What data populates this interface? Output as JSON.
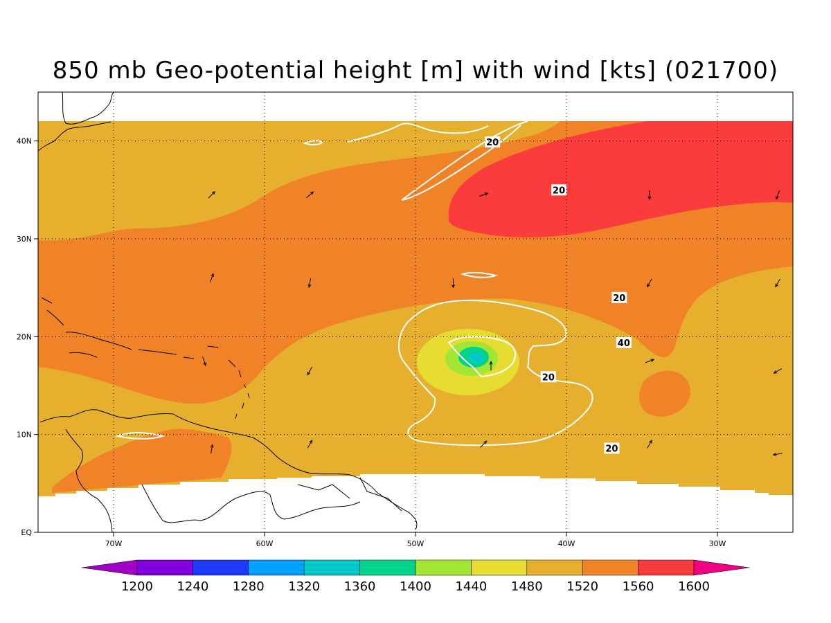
{
  "title": "850 mb Geo-potential height [m] with wind [kts] (021700)",
  "map": {
    "lon_range": [
      -75,
      -25
    ],
    "lat_range": [
      0,
      45
    ],
    "lon_ticks": [
      {
        "value": -70,
        "label": "70W"
      },
      {
        "value": -60,
        "label": "60W"
      },
      {
        "value": -50,
        "label": "50W"
      },
      {
        "value": -40,
        "label": "40W"
      },
      {
        "value": -30,
        "label": "30W"
      }
    ],
    "lat_ticks": [
      {
        "value": 0,
        "label": "EQ"
      },
      {
        "value": 10,
        "label": "10N"
      },
      {
        "value": 20,
        "label": "20N"
      },
      {
        "value": 30,
        "label": "30N"
      },
      {
        "value": 40,
        "label": "40N"
      }
    ],
    "grid": true
  },
  "colorbar": {
    "levels": [
      "1200",
      "1240",
      "1280",
      "1320",
      "1360",
      "1400",
      "1440",
      "1480",
      "1520",
      "1560",
      "1600"
    ],
    "colors": [
      "#a000c8",
      "#8200dc",
      "#1e3cff",
      "#00a0ff",
      "#00c8c8",
      "#00d28c",
      "#a0e632",
      "#e6dc32",
      "#e6af2d",
      "#f08228",
      "#fa3c3c",
      "#f00082"
    ]
  },
  "contour_labels": [
    {
      "text": "20",
      "lon": -44.9,
      "lat": 39.9
    },
    {
      "text": "20",
      "lon": -40.5,
      "lat": 35.0
    },
    {
      "text": "20",
      "lon": -36.5,
      "lat": 24.0
    },
    {
      "text": "40",
      "lon": -36.2,
      "lat": 19.4
    },
    {
      "text": "20",
      "lon": -41.2,
      "lat": 15.9
    },
    {
      "text": "20",
      "lon": -37.0,
      "lat": 8.6
    }
  ],
  "wind_vectors": [
    {
      "lon": -63.5,
      "lat": 34.5,
      "dir": 45
    },
    {
      "lon": -57.0,
      "lat": 34.5,
      "dir": 40
    },
    {
      "lon": -45.5,
      "lat": 34.5,
      "dir": 20
    },
    {
      "lon": -34.5,
      "lat": 34.5,
      "dir": 270
    },
    {
      "lon": -26.0,
      "lat": 34.5,
      "dir": 250
    },
    {
      "lon": -63.5,
      "lat": 26.0,
      "dir": 70
    },
    {
      "lon": -57.0,
      "lat": 25.5,
      "dir": 260
    },
    {
      "lon": -47.5,
      "lat": 25.5,
      "dir": 270
    },
    {
      "lon": -34.5,
      "lat": 25.5,
      "dir": 240
    },
    {
      "lon": -26.0,
      "lat": 25.5,
      "dir": 240
    },
    {
      "lon": -64.0,
      "lat": 17.5,
      "dir": 290
    },
    {
      "lon": -57.0,
      "lat": 16.5,
      "dir": 240
    },
    {
      "lon": -45.0,
      "lat": 17.0,
      "dir": 90
    },
    {
      "lon": -34.5,
      "lat": 17.5,
      "dir": 20
    },
    {
      "lon": -26.0,
      "lat": 16.5,
      "dir": 210
    },
    {
      "lon": -63.5,
      "lat": 8.5,
      "dir": 80
    },
    {
      "lon": -57.0,
      "lat": 9.0,
      "dir": 60
    },
    {
      "lon": -45.5,
      "lat": 9.0,
      "dir": 45
    },
    {
      "lon": -34.5,
      "lat": 9.0,
      "dir": 60
    },
    {
      "lon": -26.0,
      "lat": 8.0,
      "dir": 190
    }
  ]
}
